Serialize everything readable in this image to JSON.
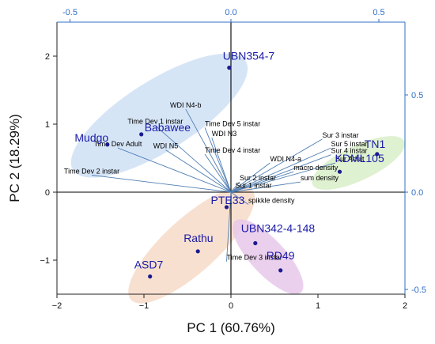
{
  "chart_data": {
    "type": "scatter",
    "subtype": "pca-biplot",
    "xlabel": "PC 1 (60.76%)",
    "ylabel": "PC 2 (18.29%)",
    "xlim": [
      -2,
      2
    ],
    "ylim": [
      -1.5,
      2.5
    ],
    "xticks": [
      -2,
      -1,
      0,
      1,
      2
    ],
    "yticks": [
      -1,
      0,
      1,
      2
    ],
    "loading_xlim": [
      -0.5,
      0.5
    ],
    "loading_ylim": [
      -0.5,
      0.5
    ],
    "loading_xticks": [
      "-0.5",
      "0.0",
      "0.5"
    ],
    "loading_yticks": [
      "0.5",
      "0.0",
      "-0.5"
    ],
    "zero_lines": true,
    "grid": false,
    "colors": {
      "axis": "#222222",
      "secondary_axis": "#2f6fc7",
      "vector": "#4f7fb5",
      "point": "#1b1b8f",
      "point_label": "#1a1aa8"
    },
    "observations": [
      {
        "label": "UBN354-7",
        "x": -0.02,
        "y": 1.83
      },
      {
        "label": "Mudgo",
        "x": -1.42,
        "y": 0.7
      },
      {
        "label": "Babawee",
        "x": -1.03,
        "y": 0.85
      },
      {
        "label": "TN1",
        "x": 1.68,
        "y": 0.56
      },
      {
        "label": "KDML105",
        "x": 1.25,
        "y": 0.3
      },
      {
        "label": "PTE33",
        "x": -0.05,
        "y": -0.22
      },
      {
        "label": "Rathu",
        "x": -0.38,
        "y": -0.87
      },
      {
        "label": "ASD7",
        "x": -0.93,
        "y": -1.24
      },
      {
        "label": "UBN342-4-148",
        "x": 0.28,
        "y": -0.75
      },
      {
        "label": "RD49",
        "x": 0.57,
        "y": -1.15
      }
    ],
    "variables": [
      {
        "label": "WDI N4-b",
        "x": -0.52,
        "y": 1.22
      },
      {
        "label": "Time Dev 1 instar",
        "x": -0.87,
        "y": 0.98
      },
      {
        "label": "Time Dev 5 instar",
        "x": -0.3,
        "y": 0.95
      },
      {
        "label": "WDI N3",
        "x": -0.22,
        "y": 0.8
      },
      {
        "label": "Time Dev Adult",
        "x": -1.3,
        "y": 0.65
      },
      {
        "label": "WDI N5",
        "x": -0.75,
        "y": 0.62
      },
      {
        "label": "Time Dev  4 instar",
        "x": -0.3,
        "y": 0.56
      },
      {
        "label": "Time Dev  2 instar",
        "x": -1.6,
        "y": 0.25
      },
      {
        "label": "Sur 3 instar",
        "x": 1.05,
        "y": 0.78
      },
      {
        "label": "Sur 5 instar",
        "x": 1.15,
        "y": 0.65
      },
      {
        "label": "Sur 4 instar",
        "x": 1.15,
        "y": 0.55
      },
      {
        "label": "Sur Adult",
        "x": 1.2,
        "y": 0.43
      },
      {
        "label": "WDI N4-a",
        "x": 0.45,
        "y": 0.43
      },
      {
        "label": "macro density",
        "x": 0.72,
        "y": 0.3
      },
      {
        "label": "sum density",
        "x": 0.8,
        "y": 0.15
      },
      {
        "label": "Sur 2 instar",
        "x": 0.1,
        "y": 0.15
      },
      {
        "label": "Sur 1 instar",
        "x": 0.05,
        "y": 0.04
      },
      {
        "label": "spikkle density",
        "x": 0.2,
        "y": -0.18
      },
      {
        "label": "Time Dev  3 instar",
        "x": -0.05,
        "y": -1.02
      }
    ],
    "groups": [
      {
        "members": [
          "UBN354-7",
          "Mudgo",
          "Babawee"
        ],
        "color": "#cfe0f4"
      },
      {
        "members": [
          "TN1",
          "KDML105"
        ],
        "color": "#d8efc8"
      },
      {
        "members": [
          "PTE33",
          "Rathu",
          "ASD7"
        ],
        "color": "#f7dac8"
      },
      {
        "members": [
          "UBN342-4-148",
          "RD49"
        ],
        "color": "#e7c8ea"
      }
    ]
  }
}
